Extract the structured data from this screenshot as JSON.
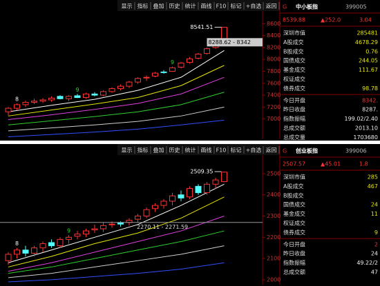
{
  "panels": [
    {
      "toolbar": [
        "显示",
        "指标",
        "叠加",
        "历史",
        "统计",
        "画线",
        "F10",
        "标记",
        "+自选",
        "返回"
      ],
      "market": "G",
      "name": "中小板指",
      "code": "399005",
      "price": "8539.88",
      "change": "▲252.0",
      "percent": "3.04",
      "rows": [
        {
          "label": "深圳市值",
          "value": "285481"
        },
        {
          "label": "A股成交",
          "value": "4678.29"
        },
        {
          "label": "B股成交",
          "value": "0.76"
        },
        {
          "label": "国债成交",
          "value": "244.05"
        },
        {
          "label": "基金成交",
          "value": "111.67"
        },
        {
          "label": "权证成交"
        },
        {
          "label": "债券成交",
          "value": "98.78"
        },
        {
          "label": "今日开盘",
          "value": "8342."
        },
        {
          "label": "昨日收盘",
          "value": "8287."
        },
        {
          "label": "指数振幅",
          "value": "199.02/2.40"
        },
        {
          "label": "总成交额",
          "value": "2013.10"
        },
        {
          "label": "总成交量",
          "value": "1703680"
        }
      ],
      "ylim": [
        6660,
        8790
      ],
      "yticks": [
        8600,
        8400,
        8200,
        8000,
        7800,
        7600,
        7400,
        7200,
        7000
      ],
      "candles": [
        [
          7120,
          7200,
          7060,
          7180
        ],
        [
          7180,
          7260,
          7150,
          7240
        ],
        [
          7240,
          7310,
          7200,
          7280
        ],
        [
          7280,
          7340,
          7250,
          7300
        ],
        [
          7300,
          7350,
          7270,
          7320
        ],
        [
          7320,
          7380,
          7290,
          7350
        ],
        [
          7380,
          7400,
          7330,
          7340
        ],
        [
          7340,
          7400,
          7300,
          7380
        ],
        [
          7390,
          7420,
          7350,
          7360
        ],
        [
          7360,
          7440,
          7340,
          7420
        ],
        [
          7420,
          7450,
          7380,
          7400
        ],
        [
          7400,
          7480,
          7380,
          7460
        ],
        [
          7460,
          7530,
          7440,
          7510
        ],
        [
          7510,
          7580,
          7480,
          7550
        ],
        [
          7550,
          7640,
          7520,
          7620
        ],
        [
          7620,
          7700,
          7590,
          7680
        ],
        [
          7690,
          7730,
          7640,
          7700
        ],
        [
          7720,
          7790,
          7700,
          7770
        ],
        [
          7790,
          7820,
          7760,
          7780
        ],
        [
          7800,
          7880,
          7790,
          7860
        ],
        [
          7870,
          7960,
          7850,
          7940
        ],
        [
          7950,
          8040,
          7930,
          8010
        ],
        [
          8020,
          8110,
          8000,
          8090
        ],
        [
          8100,
          8200,
          8080,
          8180
        ],
        [
          8200,
          8290,
          8180,
          8288
        ],
        [
          8342,
          8541.51,
          8342,
          8540
        ]
      ],
      "lines": [
        {
          "color": "#ffffff",
          "x": [
            0,
            5,
            10,
            15,
            20,
            25
          ],
          "values": [
            7120,
            7230,
            7330,
            7480,
            7700,
            8150
          ]
        },
        {
          "color": "#e8e800",
          "x": [
            0,
            5,
            10,
            15,
            20,
            25
          ],
          "values": [
            7050,
            7150,
            7250,
            7360,
            7560,
            7900
          ]
        },
        {
          "color": "#e040e0",
          "x": [
            0,
            5,
            10,
            15,
            20,
            25
          ],
          "values": [
            6990,
            7070,
            7160,
            7260,
            7420,
            7700
          ]
        },
        {
          "color": "#30d030",
          "x": [
            0,
            5,
            10,
            15,
            20,
            25
          ],
          "values": [
            6900,
            6970,
            7040,
            7120,
            7240,
            7450
          ]
        },
        {
          "color": "#d0d0d0",
          "x": [
            0,
            5,
            10,
            15,
            20,
            25
          ],
          "values": [
            6800,
            6850,
            6900,
            6960,
            7050,
            7200
          ]
        },
        {
          "color": "#3050ff",
          "x": [
            0,
            5,
            10,
            15,
            20,
            25
          ],
          "values": [
            6700,
            6740,
            6780,
            6830,
            6900,
            6980
          ]
        }
      ],
      "signals": [
        {
          "index": 1,
          "label": "8",
          "color": "#ffffff"
        },
        {
          "index": 8,
          "label": "9",
          "color": "#30d030"
        },
        {
          "index": 19,
          "label": "9",
          "color": "#30d030"
        }
      ],
      "peak": {
        "label": "8541.51",
        "value": 8541.51
      },
      "range": {
        "label": "8288.62 - 8342",
        "value": 8288.62
      }
    },
    {
      "toolbar": [
        "显示",
        "指标",
        "叠加",
        "历史",
        "统计",
        "画线",
        "F10",
        "标记",
        "+自选",
        "返回"
      ],
      "market": "G",
      "name": "创业板指",
      "code": "399006",
      "price": "2507.57",
      "change": "▲45.01",
      "percent": "1.8",
      "rows": [
        {
          "label": "深圳市值",
          "value": "285"
        },
        {
          "label": "A股成交",
          "value": "467"
        },
        {
          "label": "B股成交"
        },
        {
          "label": "国债成交",
          "value": "24"
        },
        {
          "label": "基金成交",
          "value": "11"
        },
        {
          "label": "权证成交"
        },
        {
          "label": "债券成交",
          "value": "9"
        },
        {
          "label": "今日开盘",
          "value": "2"
        },
        {
          "label": "昨日收盘",
          "value": "24"
        },
        {
          "label": "指数振幅",
          "value": "49.22/2"
        },
        {
          "label": "总成交额",
          "value": "47"
        }
      ],
      "ylim": [
        1977,
        2584
      ],
      "yticks": [
        2500,
        2400,
        2300,
        2200,
        2100,
        2000
      ],
      "candles": [
        [
          2090,
          2130,
          2070,
          2120
        ],
        [
          2120,
          2150,
          2100,
          2140
        ],
        [
          2140,
          2160,
          2110,
          2125
        ],
        [
          2125,
          2160,
          2110,
          2150
        ],
        [
          2150,
          2180,
          2130,
          2170
        ],
        [
          2175,
          2190,
          2150,
          2160
        ],
        [
          2160,
          2200,
          2150,
          2190
        ],
        [
          2190,
          2210,
          2170,
          2200
        ],
        [
          2205,
          2230,
          2190,
          2215
        ],
        [
          2215,
          2240,
          2200,
          2230
        ],
        [
          2235,
          2260,
          2220,
          2240
        ],
        [
          2240,
          2270,
          2225,
          2255
        ],
        [
          2260,
          2275,
          2245,
          2262
        ],
        [
          2268,
          2275,
          2250,
          2262
        ],
        [
          2270,
          2290,
          2255,
          2280
        ],
        [
          2285,
          2310,
          2270,
          2300
        ],
        [
          2300,
          2340,
          2290,
          2330
        ],
        [
          2335,
          2360,
          2320,
          2350
        ],
        [
          2350,
          2380,
          2335,
          2370
        ],
        [
          2370,
          2410,
          2350,
          2395
        ],
        [
          2400,
          2420,
          2370,
          2385
        ],
        [
          2390,
          2440,
          2380,
          2430
        ],
        [
          2440,
          2450,
          2400,
          2410
        ],
        [
          2410,
          2460,
          2400,
          2450
        ],
        [
          2450,
          2480,
          2430,
          2470
        ],
        [
          2462,
          2509.35,
          2460,
          2507
        ]
      ],
      "lines": [
        {
          "color": "#ffffff",
          "x": [
            0,
            5,
            10,
            15,
            20,
            25
          ],
          "values": [
            2080,
            2140,
            2200,
            2260,
            2350,
            2450
          ]
        },
        {
          "color": "#e8e800",
          "x": [
            0,
            5,
            10,
            15,
            20,
            25
          ],
          "values": [
            2060,
            2110,
            2170,
            2220,
            2290,
            2390
          ]
        },
        {
          "color": "#e040e0",
          "x": [
            0,
            5,
            10,
            15,
            20,
            25
          ],
          "values": [
            2040,
            2080,
            2130,
            2180,
            2230,
            2300
          ]
        },
        {
          "color": "#30d030",
          "x": [
            0,
            5,
            10,
            15,
            20,
            25
          ],
          "values": [
            2030,
            2060,
            2100,
            2140,
            2180,
            2230
          ]
        },
        {
          "color": "#d0d0d0",
          "x": [
            0,
            5,
            10,
            15,
            20,
            25
          ],
          "values": [
            2010,
            2030,
            2060,
            2090,
            2120,
            2160
          ]
        },
        {
          "color": "#3050ff",
          "x": [
            0,
            5,
            10,
            15,
            20,
            25
          ],
          "values": [
            1990,
            2000,
            2015,
            2030,
            2050,
            2080
          ]
        }
      ],
      "signals": [
        {
          "index": 1,
          "label": "8",
          "color": "#ffffff"
        },
        {
          "index": 7,
          "label": "9",
          "color": "#30d030"
        }
      ],
      "peak": {
        "label": "2509.35",
        "value": 2509.35
      },
      "range": {
        "label": "2270.11 - 2271.59",
        "value": 2270.11
      }
    }
  ]
}
